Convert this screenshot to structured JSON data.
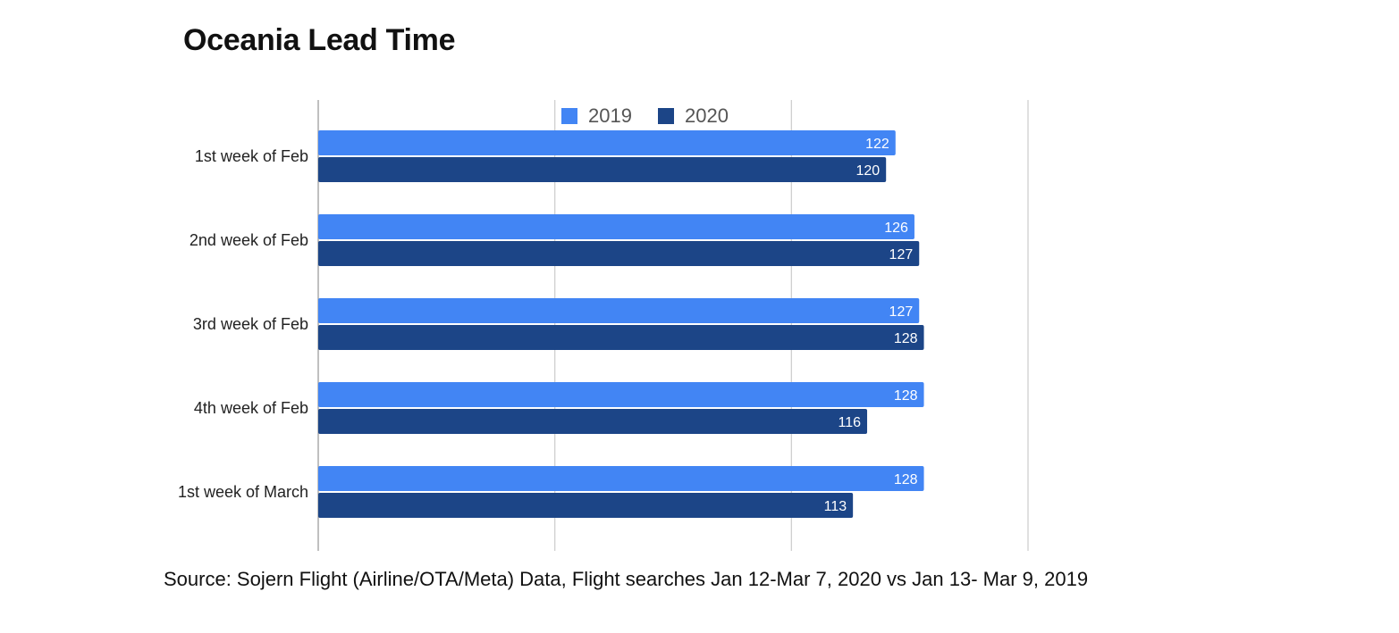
{
  "chart_data": {
    "type": "bar",
    "orientation": "horizontal",
    "title": "Oceania Lead Time",
    "categories": [
      "1st week of Feb",
      "2nd week of Feb",
      "3rd week of Feb",
      "4th week of Feb",
      "1st week of March"
    ],
    "series": [
      {
        "name": "2019",
        "color": "#4285f4",
        "values": [
          122,
          126,
          127,
          128,
          128
        ]
      },
      {
        "name": "2020",
        "color": "#1c4587",
        "values": [
          120,
          127,
          128,
          116,
          113
        ]
      }
    ],
    "xlim": [
      0,
      150
    ],
    "x_ticks_shown": false,
    "grid": true,
    "legend_position": "top",
    "data_labels": true
  },
  "source": "Source: Sojern Flight (Airline/OTA/Meta) Data, Flight searches Jan 12-Mar 7, 2020 vs Jan 13- Mar 9, 2019"
}
